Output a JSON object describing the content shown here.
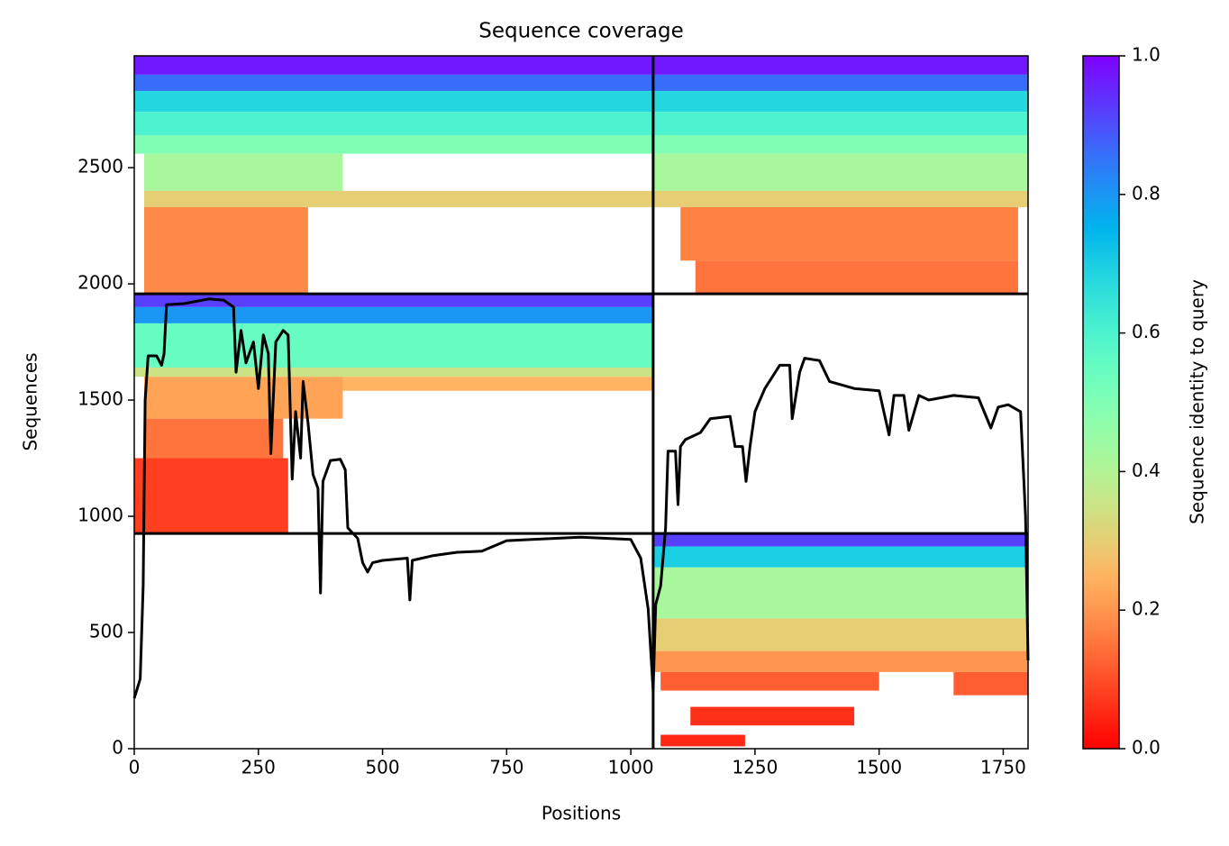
{
  "chart_data": {
    "type": "heatmap",
    "title": "Sequence coverage",
    "xlabel": "Positions",
    "ylabel": "Sequences",
    "xlim": [
      0,
      1800
    ],
    "ylim": [
      0,
      2981
    ],
    "xticks": [
      0,
      250,
      500,
      750,
      1000,
      1250,
      1500,
      1750
    ],
    "yticks": [
      0,
      500,
      1000,
      1500,
      2000,
      2500
    ],
    "colormap": "rainbow_r",
    "colorbar": {
      "label": "Sequence identity to query",
      "lim": [
        0,
        1
      ],
      "ticks": [
        {
          "value": 0,
          "label": "0.0"
        },
        {
          "value": 0.2,
          "label": "0.2"
        },
        {
          "value": 0.4,
          "label": "0.4"
        },
        {
          "value": 0.6,
          "label": "0.6"
        },
        {
          "value": 0.8,
          "label": "0.8"
        },
        {
          "value": 1,
          "label": "1.0"
        }
      ]
    },
    "cells": [
      {
        "x": [
          0,
          1800
        ],
        "y": [
          2900,
          2981
        ],
        "identity": 0.97
      },
      {
        "x": [
          0,
          1800
        ],
        "y": [
          2830,
          2900
        ],
        "identity": 0.86
      },
      {
        "x": [
          0,
          1800
        ],
        "y": [
          2740,
          2830
        ],
        "identity": 0.68
      },
      {
        "x": [
          0,
          1800
        ],
        "y": [
          2640,
          2740
        ],
        "identity": 0.6
      },
      {
        "x": [
          0,
          1800
        ],
        "y": [
          2560,
          2640
        ],
        "identity": 0.5
      },
      {
        "x": [
          20,
          420
        ],
        "y": [
          2400,
          2560
        ],
        "identity": 0.42
      },
      {
        "x": [
          1045,
          1800
        ],
        "y": [
          2400,
          2560
        ],
        "identity": 0.42
      },
      {
        "x": [
          20,
          1800
        ],
        "y": [
          2330,
          2400
        ],
        "identity": 0.3
      },
      {
        "x": [
          20,
          350
        ],
        "y": [
          1957,
          2330
        ],
        "identity": 0.18
      },
      {
        "x": [
          1100,
          1780
        ],
        "y": [
          2100,
          2330
        ],
        "identity": 0.17
      },
      {
        "x": [
          1130,
          1780
        ],
        "y": [
          1957,
          2100
        ],
        "identity": 0.15
      },
      {
        "x": [
          0,
          1045
        ],
        "y": [
          1900,
          1957
        ],
        "identity": 0.92
      },
      {
        "x": [
          0,
          1045
        ],
        "y": [
          1830,
          1900
        ],
        "identity": 0.8
      },
      {
        "x": [
          0,
          1045
        ],
        "y": [
          1640,
          1830
        ],
        "identity": 0.55
      },
      {
        "x": [
          0,
          1045
        ],
        "y": [
          1600,
          1640
        ],
        "identity": 0.35
      },
      {
        "x": [
          20,
          420
        ],
        "y": [
          1420,
          1600
        ],
        "identity": 0.22
      },
      {
        "x": [
          420,
          1045
        ],
        "y": [
          1540,
          1600
        ],
        "identity": 0.25
      },
      {
        "x": [
          20,
          300
        ],
        "y": [
          1250,
          1420
        ],
        "identity": 0.15
      },
      {
        "x": [
          0,
          310
        ],
        "y": [
          926,
          1250
        ],
        "identity": 0.08
      },
      {
        "x": [
          1045,
          1800
        ],
        "y": [
          870,
          926
        ],
        "identity": 0.92
      },
      {
        "x": [
          1045,
          1800
        ],
        "y": [
          780,
          870
        ],
        "identity": 0.7
      },
      {
        "x": [
          1045,
          1800
        ],
        "y": [
          560,
          780
        ],
        "identity": 0.42
      },
      {
        "x": [
          1045,
          1800
        ],
        "y": [
          420,
          560
        ],
        "identity": 0.3
      },
      {
        "x": [
          1045,
          1800
        ],
        "y": [
          330,
          420
        ],
        "identity": 0.2
      },
      {
        "x": [
          1060,
          1500
        ],
        "y": [
          250,
          330
        ],
        "identity": 0.12
      },
      {
        "x": [
          1650,
          1800
        ],
        "y": [
          230,
          330
        ],
        "identity": 0.12
      },
      {
        "x": [
          1120,
          1450
        ],
        "y": [
          100,
          180
        ],
        "identity": 0.06
      },
      {
        "x": [
          1060,
          1230
        ],
        "y": [
          10,
          60
        ],
        "identity": 0.05
      }
    ],
    "boundaries_x": [
      1045
    ],
    "boundaries_y": [
      926,
      1957
    ],
    "series": [
      {
        "color": "#000000",
        "x": [
          0,
          12,
          18,
          22,
          28,
          45,
          55,
          60,
          65,
          100,
          150,
          180,
          200,
          205,
          215,
          225,
          240,
          250,
          260,
          270,
          275,
          285,
          300,
          310,
          318,
          325,
          335,
          340,
          350,
          360,
          370,
          375,
          380,
          395,
          415,
          425,
          430,
          450,
          460,
          470,
          480,
          500,
          550,
          555,
          560,
          600,
          650,
          700,
          750,
          800,
          850,
          900,
          950,
          1000,
          1020,
          1035,
          1045,
          1050,
          1060,
          1070,
          1075,
          1090,
          1095,
          1100,
          1110,
          1140,
          1160,
          1200,
          1210,
          1225,
          1232,
          1240,
          1250,
          1270,
          1300,
          1320,
          1325,
          1340,
          1350,
          1380,
          1400,
          1450,
          1500,
          1520,
          1530,
          1550,
          1560,
          1580,
          1600,
          1650,
          1700,
          1725,
          1740,
          1760,
          1785,
          1795,
          1800
        ],
        "values": [
          217,
          300,
          700,
          1500,
          1690,
          1690,
          1650,
          1700,
          1910,
          1915,
          1935,
          1930,
          1900,
          1620,
          1800,
          1660,
          1750,
          1550,
          1780,
          1700,
          1270,
          1750,
          1800,
          1780,
          1160,
          1450,
          1250,
          1580,
          1400,
          1180,
          1120,
          670,
          1150,
          1240,
          1245,
          1200,
          950,
          905,
          800,
          760,
          800,
          810,
          820,
          640,
          810,
          830,
          845,
          850,
          895,
          900,
          905,
          910,
          905,
          900,
          820,
          600,
          250,
          620,
          700,
          950,
          1280,
          1280,
          1050,
          1300,
          1330,
          1360,
          1420,
          1430,
          1300,
          1300,
          1150,
          1300,
          1450,
          1550,
          1650,
          1650,
          1420,
          1620,
          1680,
          1670,
          1580,
          1550,
          1540,
          1350,
          1520,
          1520,
          1370,
          1520,
          1500,
          1520,
          1510,
          1380,
          1470,
          1480,
          1450,
          1000,
          380
        ]
      }
    ]
  }
}
